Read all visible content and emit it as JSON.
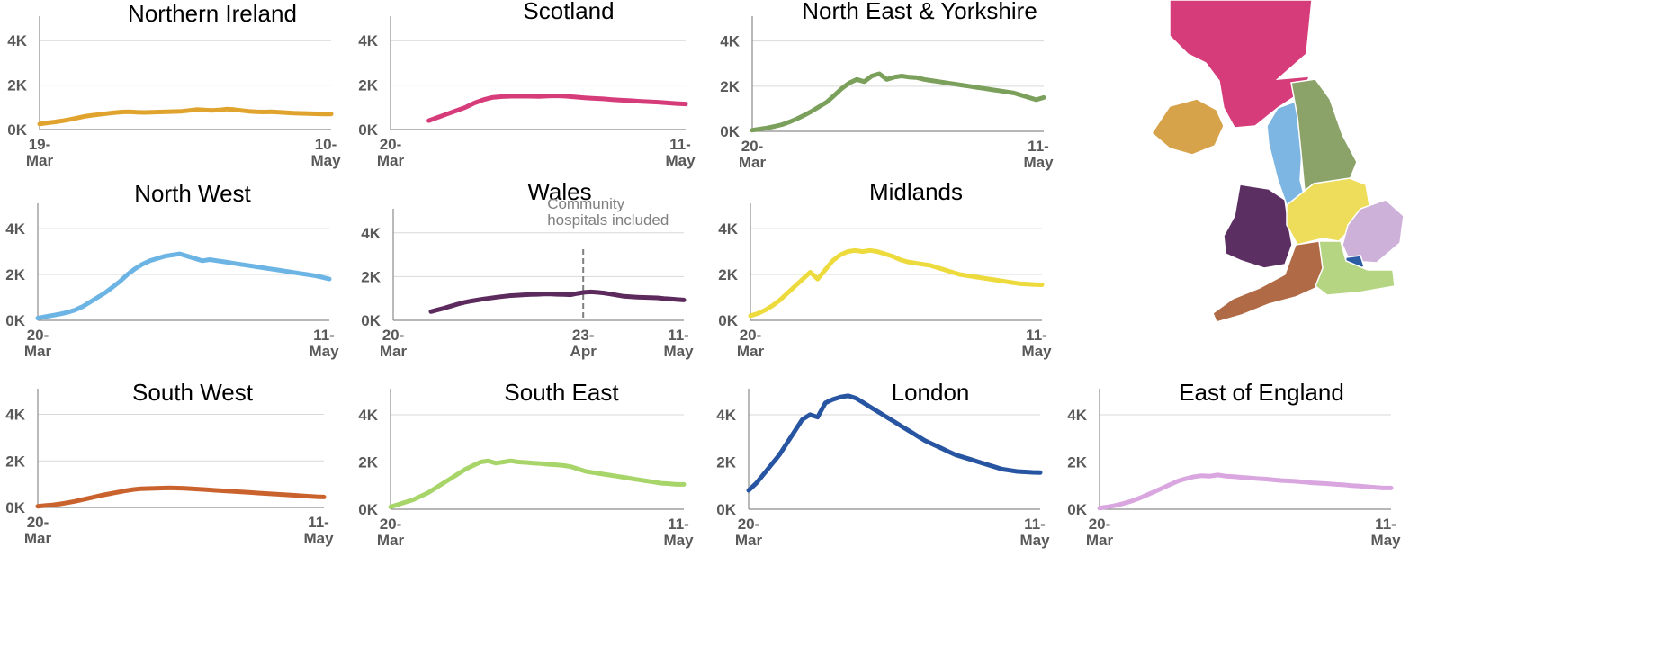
{
  "chart_data": [
    {
      "type": "line",
      "title": "Northern Ireland",
      "color": "#E0A32E",
      "yticks": [
        "0K",
        "2K",
        "4K"
      ],
      "ylim": [
        0,
        5000
      ],
      "x_start_label": "19-\nMar",
      "x_end_label": "10-\nMay",
      "x_start_day": 19,
      "x_end_day": 71,
      "series": [
        {
          "values": [
            250,
            300,
            340,
            390,
            450,
            520,
            590,
            640,
            680,
            720,
            760,
            790,
            800,
            780,
            770,
            780,
            790,
            800,
            810,
            820,
            860,
            900,
            880,
            860,
            880,
            920,
            900,
            860,
            820,
            800,
            790,
            800,
            780,
            760,
            740,
            730,
            720,
            710,
            700,
            700
          ]
        }
      ]
    },
    {
      "type": "line",
      "title": "Scotland",
      "color": "#D63C7A",
      "yticks": [
        "0K",
        "2K",
        "4K"
      ],
      "ylim": [
        0,
        5000
      ],
      "x_start_label": "20-\nMar",
      "x_end_label": "11-\nMay",
      "x_start_day": 20,
      "x_end_day": 72,
      "series": [
        {
          "values": [
            400,
            550,
            700,
            850,
            1000,
            1200,
            1350,
            1450,
            1480,
            1500,
            1500,
            1500,
            1490,
            1510,
            1520,
            1500,
            1460,
            1430,
            1400,
            1380,
            1350,
            1320,
            1300,
            1270,
            1250,
            1230,
            1200,
            1170,
            1150
          ]
        }
      ]
    },
    {
      "type": "line",
      "title": "North East & Yorkshire",
      "color": "#7BA05B",
      "yticks": [
        "0K",
        "2K",
        "4K"
      ],
      "ylim": [
        0,
        5000
      ],
      "x_start_label": "20-\nMar",
      "x_end_label": "11-\nMay",
      "x_start_day": 20,
      "x_end_day": 72,
      "series": [
        {
          "values": [
            50,
            100,
            150,
            220,
            300,
            420,
            560,
            720,
            900,
            1100,
            1300,
            1600,
            1900,
            2150,
            2300,
            2200,
            2450,
            2550,
            2300,
            2400,
            2450,
            2400,
            2380,
            2300,
            2250,
            2200,
            2150,
            2100,
            2050,
            2000,
            1950,
            1900,
            1850,
            1800,
            1750,
            1700,
            1600,
            1500,
            1400,
            1500
          ]
        }
      ]
    },
    {
      "type": "line",
      "title": "North West",
      "color": "#6CB4E4",
      "yticks": [
        "0K",
        "2K",
        "4K"
      ],
      "ylim": [
        0,
        5000
      ],
      "x_start_label": "20-\nMar",
      "x_end_label": "11-\nMay",
      "x_start_day": 20,
      "x_end_day": 72,
      "series": [
        {
          "values": [
            100,
            160,
            220,
            280,
            350,
            450,
            600,
            800,
            1000,
            1200,
            1450,
            1700,
            2000,
            2250,
            2450,
            2600,
            2700,
            2800,
            2850,
            2900,
            2800,
            2700,
            2600,
            2650,
            2600,
            2550,
            2500,
            2450,
            2400,
            2350,
            2300,
            2250,
            2200,
            2150,
            2100,
            2050,
            2000,
            1950,
            1880,
            1800
          ]
        }
      ]
    },
    {
      "type": "line",
      "title": "Wales",
      "color": "#5C2A5C",
      "yticks": [
        "0K",
        "2K",
        "4K"
      ],
      "ylim": [
        0,
        5000
      ],
      "x_start_label": "20-\nMar",
      "x_end_label": "11-\nMay",
      "x_start_day": 20,
      "x_end_day": 72,
      "mid_tick_label": "23-\nApr",
      "mid_tick_day": 54,
      "annotation": {
        "text": [
          "Community",
          "hospitals included"
        ],
        "day": 54
      },
      "series": [
        {
          "values": [
            400,
            480,
            560,
            650,
            740,
            820,
            880,
            930,
            980,
            1020,
            1060,
            1100,
            1130,
            1150,
            1170,
            1180,
            1190,
            1200,
            1200,
            1190,
            1180,
            1170,
            1230,
            1280,
            1300,
            1280,
            1250,
            1200,
            1150,
            1100,
            1080,
            1060,
            1050,
            1040,
            1030,
            1000,
            980,
            950,
            930
          ]
        }
      ]
    },
    {
      "type": "line",
      "title": "Midlands",
      "color": "#EDDB3E",
      "yticks": [
        "0K",
        "2K",
        "4K"
      ],
      "ylim": [
        0,
        5000
      ],
      "x_start_label": "20-\nMar",
      "x_end_label": "11-\nMay",
      "x_start_day": 20,
      "x_end_day": 72,
      "series": [
        {
          "values": [
            200,
            300,
            450,
            650,
            900,
            1200,
            1500,
            1800,
            2100,
            1800,
            2200,
            2600,
            2850,
            3000,
            3050,
            3000,
            3050,
            3000,
            2900,
            2800,
            2650,
            2550,
            2500,
            2450,
            2400,
            2300,
            2200,
            2100,
            2000,
            1950,
            1900,
            1850,
            1800,
            1750,
            1700,
            1650,
            1600,
            1580,
            1560,
            1550
          ]
        }
      ]
    },
    {
      "type": "line",
      "title": "South West",
      "color": "#C9622D",
      "yticks": [
        "0K",
        "2K",
        "4K"
      ],
      "ylim": [
        0,
        5000
      ],
      "x_start_label": "20-\nMar",
      "x_end_label": "11-\nMay",
      "x_start_day": 20,
      "x_end_day": 72,
      "series": [
        {
          "values": [
            50,
            80,
            110,
            150,
            200,
            260,
            330,
            400,
            470,
            540,
            600,
            660,
            720,
            770,
            800,
            810,
            820,
            830,
            840,
            830,
            820,
            800,
            780,
            760,
            740,
            720,
            700,
            680,
            660,
            640,
            620,
            600,
            580,
            560,
            540,
            520,
            500,
            480,
            460,
            450
          ]
        }
      ]
    },
    {
      "type": "line",
      "title": "South East",
      "color": "#A8D569",
      "yticks": [
        "0K",
        "2K",
        "4K"
      ],
      "ylim": [
        0,
        5000
      ],
      "x_start_label": "20-\nMar",
      "x_end_label": "11-\nMay",
      "x_start_day": 20,
      "x_end_day": 72,
      "series": [
        {
          "values": [
            100,
            200,
            300,
            400,
            550,
            700,
            900,
            1100,
            1300,
            1500,
            1700,
            1850,
            2000,
            2050,
            1950,
            2000,
            2050,
            2000,
            1980,
            1950,
            1930,
            1900,
            1880,
            1850,
            1800,
            1700,
            1600,
            1550,
            1500,
            1450,
            1400,
            1350,
            1300,
            1250,
            1200,
            1150,
            1100,
            1080,
            1050,
            1050
          ]
        }
      ]
    },
    {
      "type": "line",
      "title": "London",
      "color": "#2855A1",
      "yticks": [
        "0K",
        "2K",
        "4K"
      ],
      "ylim": [
        0,
        5000
      ],
      "x_start_label": "20-\nMar",
      "x_end_label": "11-\nMay",
      "x_start_day": 20,
      "x_end_day": 72,
      "series": [
        {
          "values": [
            800,
            1100,
            1500,
            1900,
            2300,
            2800,
            3300,
            3800,
            4000,
            3900,
            4500,
            4650,
            4750,
            4800,
            4700,
            4500,
            4300,
            4100,
            3900,
            3700,
            3500,
            3300,
            3100,
            2900,
            2750,
            2600,
            2450,
            2300,
            2200,
            2100,
            2000,
            1900,
            1800,
            1700,
            1650,
            1600,
            1580,
            1560,
            1550
          ]
        }
      ]
    },
    {
      "type": "line",
      "title": "East of England",
      "color": "#D9A6E0",
      "yticks": [
        "0K",
        "2K",
        "4K"
      ],
      "ylim": [
        0,
        5000
      ],
      "x_start_label": "20-\nMar",
      "x_end_label": "11-\nMay",
      "x_start_day": 20,
      "x_end_day": 72,
      "series": [
        {
          "values": [
            50,
            100,
            160,
            240,
            340,
            460,
            600,
            750,
            900,
            1050,
            1200,
            1300,
            1380,
            1420,
            1400,
            1450,
            1400,
            1380,
            1350,
            1330,
            1300,
            1280,
            1250,
            1220,
            1200,
            1180,
            1150,
            1120,
            1100,
            1080,
            1050,
            1030,
            1000,
            980,
            950,
            920,
            900,
            900
          ]
        }
      ]
    }
  ],
  "map": {
    "regions": [
      {
        "name": "scotland",
        "color": "#D63C7A"
      },
      {
        "name": "northern-ireland",
        "color": "#D6A24A"
      },
      {
        "name": "north-west",
        "color": "#7DB6E2"
      },
      {
        "name": "north-east-yorkshire",
        "color": "#8BA368"
      },
      {
        "name": "wales",
        "color": "#5C2F63"
      },
      {
        "name": "midlands",
        "color": "#EDDD5A"
      },
      {
        "name": "east-of-england",
        "color": "#CDB1D8"
      },
      {
        "name": "london",
        "color": "#2B5CA4"
      },
      {
        "name": "south-west",
        "color": "#B06A45"
      },
      {
        "name": "south-east",
        "color": "#B5D583"
      }
    ]
  }
}
